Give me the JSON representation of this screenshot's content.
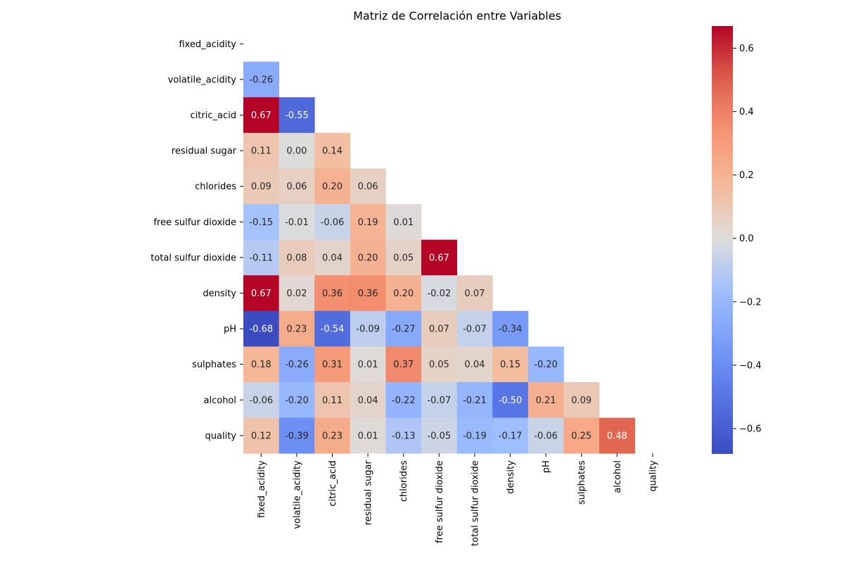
{
  "chart_data": {
    "type": "heatmap",
    "title": "Matriz de Correlación entre Variables",
    "variables": [
      "fixed_acidity",
      "volatile_acidity",
      "citric_acid",
      "residual sugar",
      "chlorides",
      "free sulfur dioxide",
      "total sulfur dioxide",
      "density",
      "pH",
      "sulphates",
      "alcohol",
      "quality"
    ],
    "mask": "upper-triangle-including-diagonal",
    "matrix": [
      [
        null,
        null,
        null,
        null,
        null,
        null,
        null,
        null,
        null,
        null,
        null,
        null
      ],
      [
        -0.26,
        null,
        null,
        null,
        null,
        null,
        null,
        null,
        null,
        null,
        null,
        null
      ],
      [
        0.67,
        -0.55,
        null,
        null,
        null,
        null,
        null,
        null,
        null,
        null,
        null,
        null
      ],
      [
        0.11,
        0.0,
        0.14,
        null,
        null,
        null,
        null,
        null,
        null,
        null,
        null,
        null
      ],
      [
        0.09,
        0.06,
        0.2,
        0.06,
        null,
        null,
        null,
        null,
        null,
        null,
        null,
        null
      ],
      [
        -0.15,
        -0.01,
        -0.06,
        0.19,
        0.01,
        null,
        null,
        null,
        null,
        null,
        null,
        null
      ],
      [
        -0.11,
        0.08,
        0.04,
        0.2,
        0.05,
        0.67,
        null,
        null,
        null,
        null,
        null,
        null
      ],
      [
        0.67,
        0.02,
        0.36,
        0.36,
        0.2,
        -0.02,
        0.07,
        null,
        null,
        null,
        null,
        null
      ],
      [
        -0.68,
        0.23,
        -0.54,
        -0.09,
        -0.27,
        0.07,
        -0.07,
        -0.34,
        null,
        null,
        null,
        null
      ],
      [
        0.18,
        -0.26,
        0.31,
        0.01,
        0.37,
        0.05,
        0.04,
        0.15,
        -0.2,
        null,
        null,
        null
      ],
      [
        -0.06,
        -0.2,
        0.11,
        0.04,
        -0.22,
        -0.07,
        -0.21,
        -0.5,
        0.21,
        0.09,
        null,
        null
      ],
      [
        0.12,
        -0.39,
        0.23,
        0.01,
        -0.13,
        -0.05,
        -0.19,
        -0.17,
        -0.06,
        0.25,
        0.48,
        null
      ]
    ],
    "value_format": "2 decimals",
    "colormap": "coolwarm",
    "colorbar": {
      "range": [
        -0.68,
        0.67
      ],
      "ticks": [
        0.6,
        0.4,
        0.2,
        0.0,
        -0.2,
        -0.4,
        -0.6
      ],
      "tick_labels": [
        "0.6",
        "0.4",
        "0.2",
        "0.0",
        "−0.2",
        "−0.4",
        "−0.6"
      ],
      "position": "right"
    },
    "grid": false
  }
}
